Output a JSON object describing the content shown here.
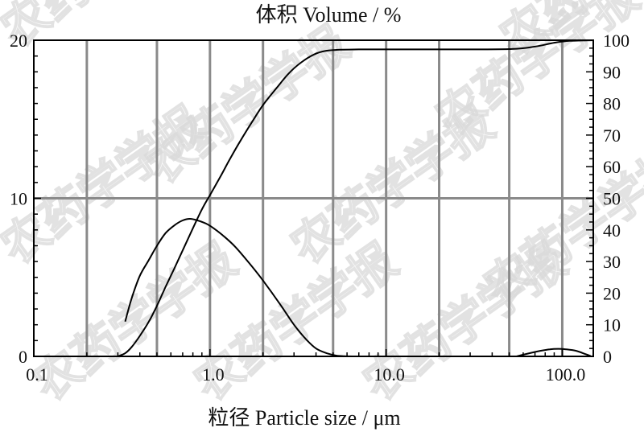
{
  "chart_data": {
    "type": "line",
    "title": "体积 Volume / %",
    "xlabel": "粒径 Particle size / μm",
    "ylabel": "",
    "x_scale": "log",
    "xlim": [
      0.1,
      150
    ],
    "ylim_left": [
      0,
      20
    ],
    "ylim_right": [
      0,
      100
    ],
    "x_tick_labels": [
      "0.1",
      "1.0",
      "10.0",
      "100.0"
    ],
    "y_left_tick_labels": [
      "0",
      "10",
      "20"
    ],
    "y_right_tick_labels": [
      "0",
      "10",
      "20",
      "30",
      "40",
      "50",
      "60",
      "70",
      "80",
      "90",
      "100"
    ],
    "grid": true,
    "series": [
      {
        "axis": "left",
        "color": "#000000",
        "x": [
          0.33,
          0.36,
          0.4,
          0.45,
          0.5,
          0.56,
          0.63,
          0.7,
          0.77,
          0.85,
          0.95,
          1.05,
          1.2,
          1.4,
          1.7,
          2.0,
          2.5,
          3.0,
          3.5,
          4.0,
          4.6,
          5.2,
          5.8,
          6.5
        ],
        "y": [
          2.2,
          3.7,
          5.1,
          6.1,
          7.0,
          7.8,
          8.3,
          8.6,
          8.7,
          8.6,
          8.4,
          8.1,
          7.6,
          6.9,
          5.8,
          4.8,
          3.3,
          2.0,
          1.1,
          0.5,
          0.2,
          0.05,
          0.01,
          0.0
        ]
      },
      {
        "axis": "left",
        "color": "#000000",
        "x": [
          55,
          65,
          75,
          85,
          95,
          105,
          120,
          135,
          145
        ],
        "y": [
          0.0,
          0.2,
          0.35,
          0.45,
          0.48,
          0.45,
          0.35,
          0.15,
          0.02
        ]
      },
      {
        "axis": "right",
        "color": "#000000",
        "x": [
          0.3,
          0.33,
          0.36,
          0.4,
          0.45,
          0.5,
          0.56,
          0.63,
          0.7,
          0.8,
          0.9,
          1.0,
          1.15,
          1.3,
          1.5,
          1.75,
          2.0,
          2.4,
          2.8,
          3.3,
          3.9,
          4.5,
          5.5,
          7.0,
          10.0,
          20.0,
          50.0,
          70.0,
          90.0,
          110.0,
          150.0
        ],
        "y": [
          0.0,
          1.0,
          3.0,
          6.5,
          11.0,
          16.0,
          22.0,
          28.0,
          33.5,
          40.5,
          46.5,
          51.0,
          57.0,
          62.5,
          68.5,
          74.5,
          79.5,
          85.0,
          89.5,
          93.0,
          95.5,
          96.6,
          97.0,
          97.1,
          97.1,
          97.1,
          97.2,
          98.0,
          99.2,
          99.8,
          100.0
        ]
      }
    ]
  },
  "watermark": {
    "text": "农药学学报",
    "color": "#d9d9d9"
  }
}
